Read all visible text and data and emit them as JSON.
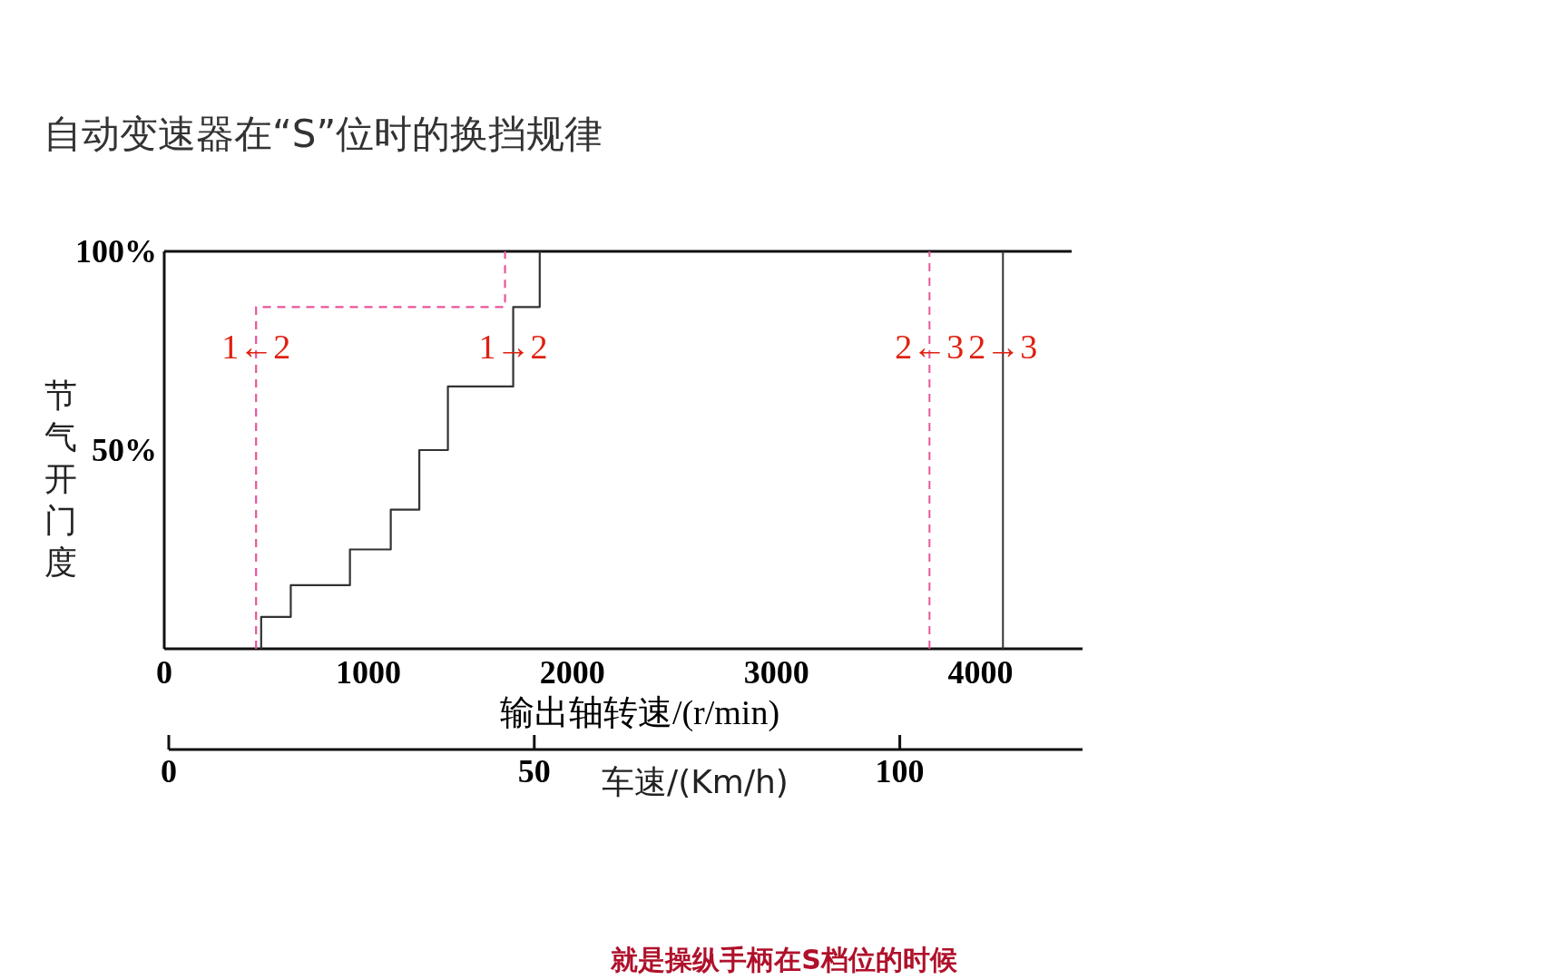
{
  "chart_data": {
    "type": "line",
    "title": "自动变速器在“S”位时的换挡规律",
    "xlabel": "输出轴转速/(r/min)",
    "ylabel": "节气开门度",
    "x2label": "车速/(Km/h)",
    "xlim": [
      0,
      4500
    ],
    "xticks": [
      0,
      1000,
      2000,
      3000,
      4000
    ],
    "ylim": [
      0,
      100
    ],
    "yticks": [
      {
        "value": 50,
        "label": "50%"
      },
      {
        "value": 100,
        "label": "100%"
      }
    ],
    "x2lim": [
      0,
      125
    ],
    "x2ticks": [
      0,
      50,
      100
    ],
    "series": [
      {
        "color": "#333333",
        "line_style": "solid",
        "x": [
          475,
          475,
          620,
          620,
          910,
          910,
          1110,
          1110,
          1250,
          1250,
          1390,
          1390,
          1710,
          1710,
          1840,
          1840
        ],
        "values": [
          0,
          8,
          8,
          16,
          16,
          25,
          25,
          35,
          35,
          50,
          50,
          66,
          66,
          86,
          86,
          100
        ]
      },
      {
        "color": "#e8559a",
        "line_style": "dashed",
        "x": [
          450,
          450,
          1670,
          1670
        ],
        "values": [
          0,
          86,
          86,
          100
        ]
      }
    ],
    "ref_lines": [
      {
        "axis": "x",
        "value": 3750,
        "color": "#e8559a",
        "line_style": "dashed"
      },
      {
        "axis": "x",
        "value": 4110,
        "color": "#333333",
        "line_style": "solid"
      }
    ],
    "annotations": [
      {
        "text": "1←2",
        "x": 450,
        "y": 76
      },
      {
        "text": "1→2",
        "x": 1710,
        "y": 76
      },
      {
        "text": "2←3",
        "x": 3750,
        "y": 76
      },
      {
        "text": "2→3",
        "x": 4110,
        "y": 76
      },
      "就是操纵手柄在S档位的时候"
    ]
  }
}
